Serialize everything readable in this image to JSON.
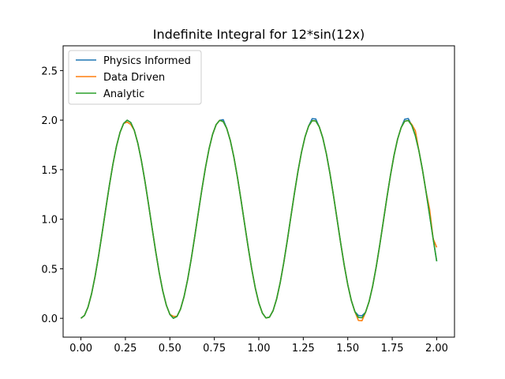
{
  "chart_data": {
    "type": "line",
    "title": "Indefinite Integral for 12*sin(12x)",
    "xlabel": "",
    "ylabel": "",
    "xlim": [
      -0.1,
      2.1
    ],
    "ylim": [
      -0.19,
      2.75
    ],
    "x_ticks": [
      0.0,
      0.25,
      0.5,
      0.75,
      1.0,
      1.25,
      1.5,
      1.75,
      2.0
    ],
    "x_tick_labels": [
      "0.00",
      "0.25",
      "0.50",
      "0.75",
      "1.00",
      "1.25",
      "1.50",
      "1.75",
      "2.00"
    ],
    "y_ticks": [
      0.0,
      0.5,
      1.0,
      1.5,
      2.0,
      2.5
    ],
    "y_tick_labels": [
      "0.0",
      "0.5",
      "1.0",
      "1.5",
      "2.0",
      "2.5"
    ],
    "grid": false,
    "legend_position": "top-left",
    "function": "1 - cos(12x)",
    "x_range": [
      0,
      2
    ],
    "samples": 101,
    "series": [
      {
        "name": "Physics Informed",
        "color": "#1f77b4",
        "deviations": [
          {
            "x": 0.8,
            "dy": 0.02
          },
          {
            "x": 1.31,
            "dy": 0.02
          },
          {
            "x": 1.83,
            "dy": 0.02
          },
          {
            "x": 1.57,
            "dy": 0.02
          }
        ]
      },
      {
        "name": "Data Driven",
        "color": "#ff7f0e",
        "deviations": [
          {
            "x": 0.27,
            "dy": -0.02
          },
          {
            "x": 0.52,
            "dy": 0.02
          },
          {
            "x": 1.57,
            "dy": -0.03
          },
          {
            "x": 1.86,
            "dy": 0.01
          },
          {
            "x": 1.88,
            "dy": 0.05
          },
          {
            "x": 1.96,
            "dy": 0.06
          },
          {
            "x": 2.0,
            "dy": 0.14
          }
        ]
      },
      {
        "name": "Analytic",
        "color": "#2ca02c",
        "deviations": []
      }
    ]
  }
}
